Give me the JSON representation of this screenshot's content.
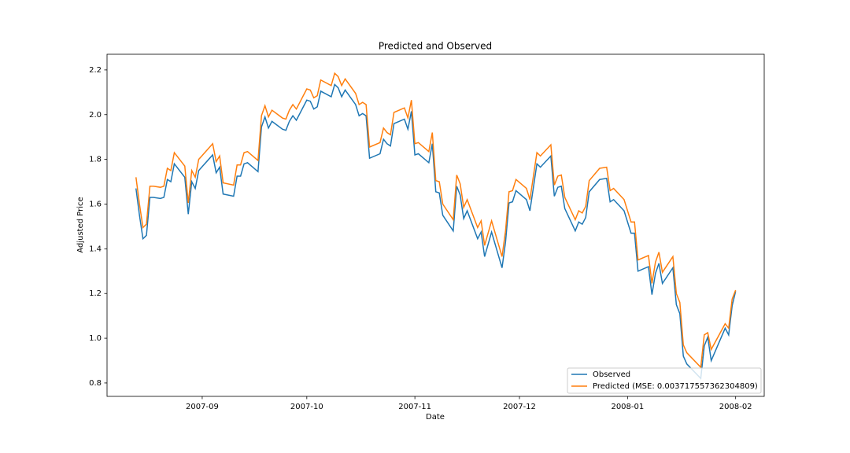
{
  "chart_data": {
    "type": "line",
    "title": "Predicted and Observed",
    "xlabel": "Date",
    "ylabel": "Adjusted Price",
    "x": [
      12,
      13,
      14,
      15,
      16,
      17,
      19,
      20,
      21,
      22,
      23,
      26,
      27,
      28,
      29,
      30,
      34,
      35,
      36,
      37,
      40,
      41,
      42,
      43,
      44,
      47,
      48,
      49,
      50,
      51,
      54,
      55,
      56,
      57,
      58,
      61,
      62,
      63,
      64,
      65,
      68,
      69,
      70,
      71,
      72,
      75,
      76,
      77,
      78,
      79,
      82,
      83,
      84,
      85,
      86,
      89,
      90,
      91,
      92,
      93,
      96,
      97,
      98,
      99,
      100,
      103,
      104,
      105,
      106,
      107,
      110,
      111,
      112,
      114,
      117,
      118,
      119,
      120,
      121,
      124,
      125,
      127,
      128,
      131,
      132,
      133,
      134,
      135,
      138,
      139,
      140,
      141,
      142,
      145,
      147,
      148,
      149,
      152,
      154,
      155,
      156,
      159,
      160,
      161,
      162,
      163,
      166,
      167,
      168,
      169,
      170,
      174,
      175,
      176,
      177,
      181,
      182,
      183,
      184
    ],
    "series": [
      {
        "name": "Observed",
        "color": "#1f77b4",
        "values": [
          1.67,
          1.55,
          1.445,
          1.46,
          1.63,
          1.63,
          1.625,
          1.63,
          1.71,
          1.7,
          1.78,
          1.72,
          1.555,
          1.7,
          1.67,
          1.75,
          1.82,
          1.74,
          1.765,
          1.645,
          1.635,
          1.725,
          1.725,
          1.78,
          1.785,
          1.745,
          1.945,
          1.99,
          1.94,
          1.97,
          1.935,
          1.93,
          1.97,
          1.995,
          1.975,
          2.065,
          2.06,
          2.025,
          2.035,
          2.105,
          2.08,
          2.135,
          2.12,
          2.08,
          2.11,
          2.045,
          1.995,
          2.005,
          1.995,
          1.805,
          1.825,
          1.89,
          1.87,
          1.86,
          1.96,
          1.98,
          1.935,
          2.015,
          1.82,
          1.825,
          1.785,
          1.87,
          1.655,
          1.65,
          1.55,
          1.48,
          1.68,
          1.64,
          1.535,
          1.57,
          1.445,
          1.475,
          1.365,
          1.475,
          1.315,
          1.43,
          1.605,
          1.61,
          1.66,
          1.62,
          1.57,
          1.78,
          1.765,
          1.815,
          1.635,
          1.675,
          1.68,
          1.58,
          1.48,
          1.52,
          1.51,
          1.54,
          1.655,
          1.71,
          1.715,
          1.61,
          1.62,
          1.57,
          1.47,
          1.47,
          1.3,
          1.32,
          1.195,
          1.29,
          1.335,
          1.245,
          1.315,
          1.15,
          1.11,
          0.92,
          0.885,
          0.82,
          0.965,
          1.005,
          0.9,
          1.045,
          1.015,
          1.145,
          1.21
        ]
      },
      {
        "name": "Predicted (MSE: 0.003717557362304809)",
        "color": "#ff7f0e",
        "values": [
          1.72,
          1.6,
          1.495,
          1.51,
          1.68,
          1.68,
          1.675,
          1.68,
          1.76,
          1.75,
          1.83,
          1.77,
          1.605,
          1.75,
          1.72,
          1.8,
          1.87,
          1.79,
          1.815,
          1.695,
          1.685,
          1.775,
          1.775,
          1.83,
          1.835,
          1.795,
          1.995,
          2.04,
          1.99,
          2.02,
          1.985,
          1.98,
          2.02,
          2.045,
          2.025,
          2.115,
          2.11,
          2.075,
          2.085,
          2.155,
          2.13,
          2.185,
          2.17,
          2.13,
          2.16,
          2.095,
          2.045,
          2.055,
          2.045,
          1.855,
          1.875,
          1.94,
          1.92,
          1.91,
          2.01,
          2.03,
          1.985,
          2.065,
          1.87,
          1.875,
          1.835,
          1.92,
          1.705,
          1.7,
          1.6,
          1.53,
          1.73,
          1.69,
          1.585,
          1.62,
          1.495,
          1.525,
          1.415,
          1.525,
          1.365,
          1.48,
          1.655,
          1.66,
          1.71,
          1.67,
          1.62,
          1.83,
          1.815,
          1.865,
          1.685,
          1.725,
          1.73,
          1.63,
          1.53,
          1.57,
          1.56,
          1.59,
          1.705,
          1.76,
          1.765,
          1.66,
          1.67,
          1.62,
          1.52,
          1.52,
          1.35,
          1.37,
          1.245,
          1.34,
          1.385,
          1.295,
          1.365,
          1.2,
          1.16,
          0.97,
          0.935,
          0.87,
          1.015,
          1.025,
          0.95,
          1.065,
          1.045,
          1.175,
          1.215
        ]
      }
    ],
    "xlim": [
      3.7,
      192.2
    ],
    "xticks": [
      {
        "value": 31,
        "label": "2007-09"
      },
      {
        "value": 61,
        "label": "2007-10"
      },
      {
        "value": 92,
        "label": "2007-11"
      },
      {
        "value": 122,
        "label": "2007-12"
      },
      {
        "value": 153,
        "label": "2008-01"
      },
      {
        "value": 184,
        "label": "2008-02"
      }
    ],
    "ylim": [
      0.74,
      2.27
    ],
    "yticks": [
      0.8,
      {
        "value": 1,
        "label": "1.0"
      },
      1.2,
      1.4,
      1.6,
      1.8,
      {
        "value": 2,
        "label": "2.0"
      },
      2.2
    ],
    "grid": false,
    "legend": "lower right"
  }
}
